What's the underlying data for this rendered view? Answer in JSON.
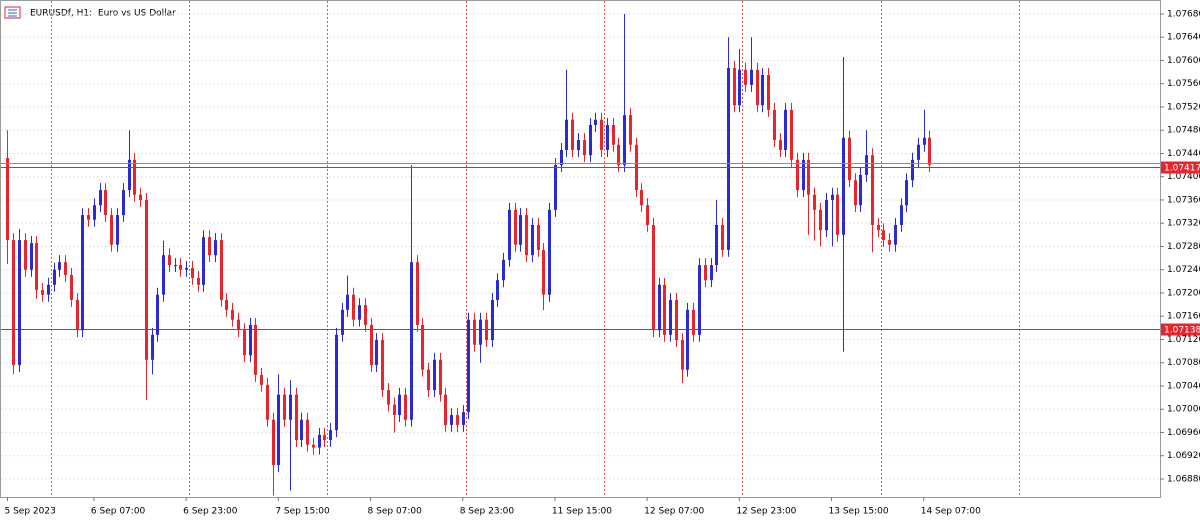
{
  "chart_data": {
    "type": "candlestick",
    "title": "EURUSDf, H1:  Euro vs US Dollar",
    "bull_color": "#2b2bd6",
    "bear_color": "#e8252c",
    "open": [
      1.07432,
      1.07291,
      1.07076,
      1.07291,
      1.0724,
      1.07286,
      1.07205,
      1.07197,
      1.07214,
      1.0724,
      1.07253,
      1.07231,
      1.07188,
      1.07136,
      1.07334,
      1.07326,
      1.07351,
      1.07377,
      1.07334,
      1.07283,
      1.07334,
      1.07377,
      1.07429,
      1.07369,
      1.0736,
      1.07085,
      1.07128,
      1.07197,
      1.07265,
      1.07248,
      1.07248,
      1.0724,
      1.07243,
      1.07226,
      1.07214,
      1.07296,
      1.07265,
      1.07291,
      1.07188,
      1.07171,
      1.07154,
      1.07136,
      1.07093,
      1.07145,
      1.07059,
      1.07042,
      1.06982,
      1.06904,
      1.07025,
      1.06982,
      1.07025,
      1.06947,
      1.06982,
      1.06939,
      1.06934,
      1.06956,
      1.06947,
      1.06964,
      1.07128,
      1.07171,
      1.07197,
      1.07154,
      1.07179,
      1.07145,
      1.07076,
      1.07119,
      1.07033,
      1.07008,
      1.0699,
      1.07025,
      1.06982,
      1.07253,
      1.07145,
      1.07068,
      1.07033,
      1.07085,
      1.07025,
      1.06973,
      1.0699,
      1.06973,
      1.06995,
      1.07154,
      1.07111,
      1.07154,
      1.07119,
      1.07188,
      1.07222,
      1.07257,
      1.07343,
      1.07283,
      1.07334,
      1.07265,
      1.07317,
      1.07274,
      1.07197,
      1.07343,
      1.0742,
      1.07446,
      1.07498,
      1.07446,
      1.07463,
      1.07437,
      1.07489,
      1.07498,
      1.07446,
      1.07489,
      1.07455,
      1.0742,
      1.07506,
      1.07455,
      1.07377,
      1.07351,
      1.07317,
      1.07136,
      1.07214,
      1.07128,
      1.07188,
      1.07119,
      1.07068,
      1.07171,
      1.07128,
      1.07248,
      1.07222,
      1.07248,
      1.07317,
      1.07274,
      1.07587,
      1.07523,
      1.07584,
      1.07558,
      1.07584,
      1.07523,
      1.07575,
      1.07515,
      1.07463,
      1.07446,
      1.07515,
      1.07429,
      1.07377,
      1.07429,
      1.07369,
      1.07343,
      1.07308,
      1.0736,
      1.07369,
      1.073,
      1.07467,
      1.07394,
      1.07351,
      1.07403,
      1.07437,
      1.07317,
      1.07308,
      1.07291,
      1.07283,
      1.07317,
      1.07351,
      1.07394,
      1.07429,
      1.07455,
      1.07467
    ],
    "high": [
      1.0748,
      1.07303,
      1.0731,
      1.07303,
      1.07298,
      1.07298,
      1.07217,
      1.07226,
      1.07252,
      1.07265,
      1.07265,
      1.07243,
      1.072,
      1.07346,
      1.07346,
      1.07363,
      1.07389,
      1.07389,
      1.07346,
      1.07346,
      1.07389,
      1.0748,
      1.07441,
      1.07381,
      1.07372,
      1.0714,
      1.07209,
      1.0729,
      1.07277,
      1.0726,
      1.0726,
      1.07255,
      1.07255,
      1.07238,
      1.07308,
      1.07308,
      1.07303,
      1.07303,
      1.072,
      1.07183,
      1.07166,
      1.07148,
      1.07157,
      1.07157,
      1.07071,
      1.07054,
      1.06994,
      1.0706,
      1.07037,
      1.0705,
      1.07037,
      1.06994,
      1.06994,
      1.06951,
      1.06968,
      1.06968,
      1.06976,
      1.0714,
      1.07183,
      1.0723,
      1.07209,
      1.07191,
      1.07191,
      1.07157,
      1.07131,
      1.07131,
      1.07045,
      1.0702,
      1.07037,
      1.07037,
      1.0742,
      1.07265,
      1.07157,
      1.0708,
      1.07097,
      1.07097,
      1.07037,
      1.07002,
      1.07002,
      1.07007,
      1.07166,
      1.07166,
      1.07166,
      1.07166,
      1.072,
      1.07234,
      1.07269,
      1.07355,
      1.07355,
      1.07346,
      1.07346,
      1.07329,
      1.07329,
      1.07286,
      1.07355,
      1.07432,
      1.07458,
      1.07584,
      1.0751,
      1.07475,
      1.07475,
      1.07501,
      1.0751,
      1.0751,
      1.07501,
      1.07501,
      1.07467,
      1.0768,
      1.07518,
      1.07467,
      1.07389,
      1.07363,
      1.07329,
      1.07226,
      1.07226,
      1.072,
      1.072,
      1.07131,
      1.07183,
      1.07183,
      1.0726,
      1.0726,
      1.0726,
      1.0736,
      1.07329,
      1.0764,
      1.07599,
      1.0762,
      1.07596,
      1.0764,
      1.07596,
      1.07587,
      1.07587,
      1.07527,
      1.07475,
      1.07527,
      1.07527,
      1.07441,
      1.07441,
      1.07441,
      1.07381,
      1.07355,
      1.07372,
      1.07381,
      1.07381,
      1.07606,
      1.07479,
      1.07406,
      1.07415,
      1.0748,
      1.07449,
      1.07329,
      1.0732,
      1.07303,
      1.07329,
      1.07363,
      1.07406,
      1.07441,
      1.07467,
      1.07515,
      1.07479
    ],
    "low": [
      1.0725,
      1.0706,
      1.07064,
      1.07228,
      1.07228,
      1.0719,
      1.07185,
      1.07185,
      1.07202,
      1.07228,
      1.07219,
      1.07176,
      1.07124,
      1.07124,
      1.07314,
      1.07314,
      1.07339,
      1.07322,
      1.07271,
      1.07271,
      1.07322,
      1.07365,
      1.07357,
      1.07348,
      1.07016,
      1.0706,
      1.07116,
      1.07185,
      1.07236,
      1.07236,
      1.07228,
      1.07228,
      1.07214,
      1.07202,
      1.07202,
      1.07253,
      1.07253,
      1.07176,
      1.07159,
      1.07142,
      1.07124,
      1.07081,
      1.07081,
      1.07047,
      1.0703,
      1.0697,
      1.06852,
      1.06892,
      1.0697,
      1.0686,
      1.06935,
      1.06935,
      1.06927,
      1.06922,
      1.06922,
      1.06935,
      1.06935,
      1.06952,
      1.07116,
      1.07159,
      1.07142,
      1.07142,
      1.07133,
      1.07064,
      1.07064,
      1.07021,
      1.06996,
      1.0696,
      1.06978,
      1.0697,
      1.0697,
      1.07133,
      1.07056,
      1.07021,
      1.07021,
      1.07013,
      1.06961,
      1.06961,
      1.06961,
      1.06961,
      1.06983,
      1.07099,
      1.0708,
      1.07107,
      1.07107,
      1.07176,
      1.0721,
      1.07245,
      1.07271,
      1.07271,
      1.07253,
      1.07253,
      1.07262,
      1.0717,
      1.07185,
      1.07331,
      1.07408,
      1.07434,
      1.07434,
      1.07434,
      1.07425,
      1.07425,
      1.07477,
      1.07434,
      1.07434,
      1.07443,
      1.07408,
      1.07408,
      1.07443,
      1.07365,
      1.07339,
      1.07305,
      1.07124,
      1.07124,
      1.07116,
      1.07116,
      1.07107,
      1.07045,
      1.07056,
      1.07116,
      1.07116,
      1.0721,
      1.0721,
      1.07236,
      1.07262,
      1.07262,
      1.07511,
      1.07511,
      1.07546,
      1.07546,
      1.07511,
      1.07511,
      1.07503,
      1.07451,
      1.07434,
      1.07434,
      1.07417,
      1.07365,
      1.07365,
      1.073,
      1.0729,
      1.0728,
      1.07296,
      1.0728,
      1.07288,
      1.07099,
      1.07382,
      1.07339,
      1.07339,
      1.07391,
      1.0727,
      1.07296,
      1.07279,
      1.07271,
      1.07271,
      1.07305,
      1.07339,
      1.07382,
      1.07417,
      1.07443,
      1.07408
    ],
    "close": [
      1.07291,
      1.07076,
      1.07291,
      1.0724,
      1.07286,
      1.07205,
      1.07197,
      1.07214,
      1.0724,
      1.07253,
      1.07231,
      1.07188,
      1.07136,
      1.07334,
      1.07326,
      1.07351,
      1.07377,
      1.07334,
      1.07283,
      1.07334,
      1.07377,
      1.07429,
      1.07369,
      1.0736,
      1.07085,
      1.07128,
      1.07197,
      1.07265,
      1.07248,
      1.07248,
      1.0724,
      1.07243,
      1.07226,
      1.07214,
      1.07296,
      1.07265,
      1.07291,
      1.07188,
      1.07171,
      1.07154,
      1.07136,
      1.07093,
      1.07145,
      1.07059,
      1.07042,
      1.06982,
      1.06904,
      1.07025,
      1.06982,
      1.07025,
      1.06947,
      1.06982,
      1.06939,
      1.06934,
      1.06956,
      1.06947,
      1.06964,
      1.07128,
      1.07171,
      1.07197,
      1.07154,
      1.07179,
      1.07145,
      1.07076,
      1.07119,
      1.07033,
      1.07008,
      1.0699,
      1.07025,
      1.06982,
      1.07253,
      1.07145,
      1.07068,
      1.07033,
      1.07085,
      1.07025,
      1.06973,
      1.0699,
      1.06973,
      1.06995,
      1.07154,
      1.07111,
      1.07154,
      1.07119,
      1.07188,
      1.07222,
      1.07257,
      1.07343,
      1.07283,
      1.07334,
      1.07265,
      1.07317,
      1.07274,
      1.07197,
      1.07343,
      1.0742,
      1.07446,
      1.07498,
      1.07446,
      1.07463,
      1.07437,
      1.07489,
      1.07498,
      1.07446,
      1.07489,
      1.07455,
      1.0742,
      1.07506,
      1.07455,
      1.07377,
      1.07351,
      1.07317,
      1.07136,
      1.07214,
      1.07128,
      1.07188,
      1.07119,
      1.07068,
      1.07171,
      1.07128,
      1.07248,
      1.07222,
      1.07248,
      1.07317,
      1.07274,
      1.07587,
      1.07523,
      1.07584,
      1.07558,
      1.07584,
      1.07523,
      1.07575,
      1.07515,
      1.07463,
      1.07446,
      1.07515,
      1.07429,
      1.07377,
      1.07429,
      1.07369,
      1.07343,
      1.07308,
      1.0736,
      1.07369,
      1.073,
      1.07467,
      1.07394,
      1.07351,
      1.07403,
      1.07437,
      1.07317,
      1.07308,
      1.07291,
      1.07283,
      1.07317,
      1.07351,
      1.07394,
      1.07429,
      1.07455,
      1.07467,
      1.0742
    ],
    "ylim": [
      1.06849,
      1.07704
    ],
    "yticks": [
      {
        "value": 1.0768,
        "label": "1.07680"
      },
      {
        "value": 1.0764,
        "label": "1.07640"
      },
      {
        "value": 1.076,
        "label": "1.07600"
      },
      {
        "value": 1.0756,
        "label": "1.07560"
      },
      {
        "value": 1.0752,
        "label": "1.07520"
      },
      {
        "value": 1.0748,
        "label": "1.07480"
      },
      {
        "value": 1.0744,
        "label": "1.07440"
      },
      {
        "value": 1.074,
        "label": "1.07400"
      },
      {
        "value": 1.0736,
        "label": "1.07360"
      },
      {
        "value": 1.0732,
        "label": "1.07320"
      },
      {
        "value": 1.0728,
        "label": "1.07280"
      },
      {
        "value": 1.0724,
        "label": "1.07240"
      },
      {
        "value": 1.072,
        "label": "1.07200"
      },
      {
        "value": 1.0716,
        "label": "1.07160"
      },
      {
        "value": 1.0712,
        "label": "1.07120"
      },
      {
        "value": 1.0708,
        "label": "1.07080"
      },
      {
        "value": 1.0704,
        "label": "1.07040"
      },
      {
        "value": 1.07,
        "label": "1.07000"
      },
      {
        "value": 1.0696,
        "label": "1.06960"
      },
      {
        "value": 1.0692,
        "label": "1.06920"
      },
      {
        "value": 1.0688,
        "label": "1.06880"
      }
    ],
    "xlim": [
      -1.3,
      200
    ],
    "xticks": [
      {
        "value": 0,
        "label": "5 Sep 2023"
      },
      {
        "value": 15,
        "label": "6 Sep 07:00"
      },
      {
        "value": 31,
        "label": "6 Sep 23:00"
      },
      {
        "value": 47,
        "label": "7 Sep 15:00"
      },
      {
        "value": 63,
        "label": "8 Sep 07:00"
      },
      {
        "value": 79,
        "label": "8 Sep 23:00"
      },
      {
        "value": 95,
        "label": "11 Sep 15:00"
      },
      {
        "value": 111,
        "label": "12 Sep 07:00"
      },
      {
        "value": 127,
        "label": "12 Sep 23:00"
      },
      {
        "value": 143,
        "label": "13 Sep 15:00"
      },
      {
        "value": 159,
        "label": "14 Sep 07:00"
      }
    ],
    "day_separators": [
      8,
      32,
      56,
      80,
      104,
      128,
      152,
      176
    ],
    "separator_color": "#e8252c",
    "grid": true,
    "ask_line": {
      "value": 1.07424,
      "color": "#8c8c8c"
    },
    "price_line": {
      "value": 1.07417,
      "color": "#e8252c"
    },
    "level_line": {
      "value": 1.07138,
      "color": "#e8252c"
    }
  }
}
